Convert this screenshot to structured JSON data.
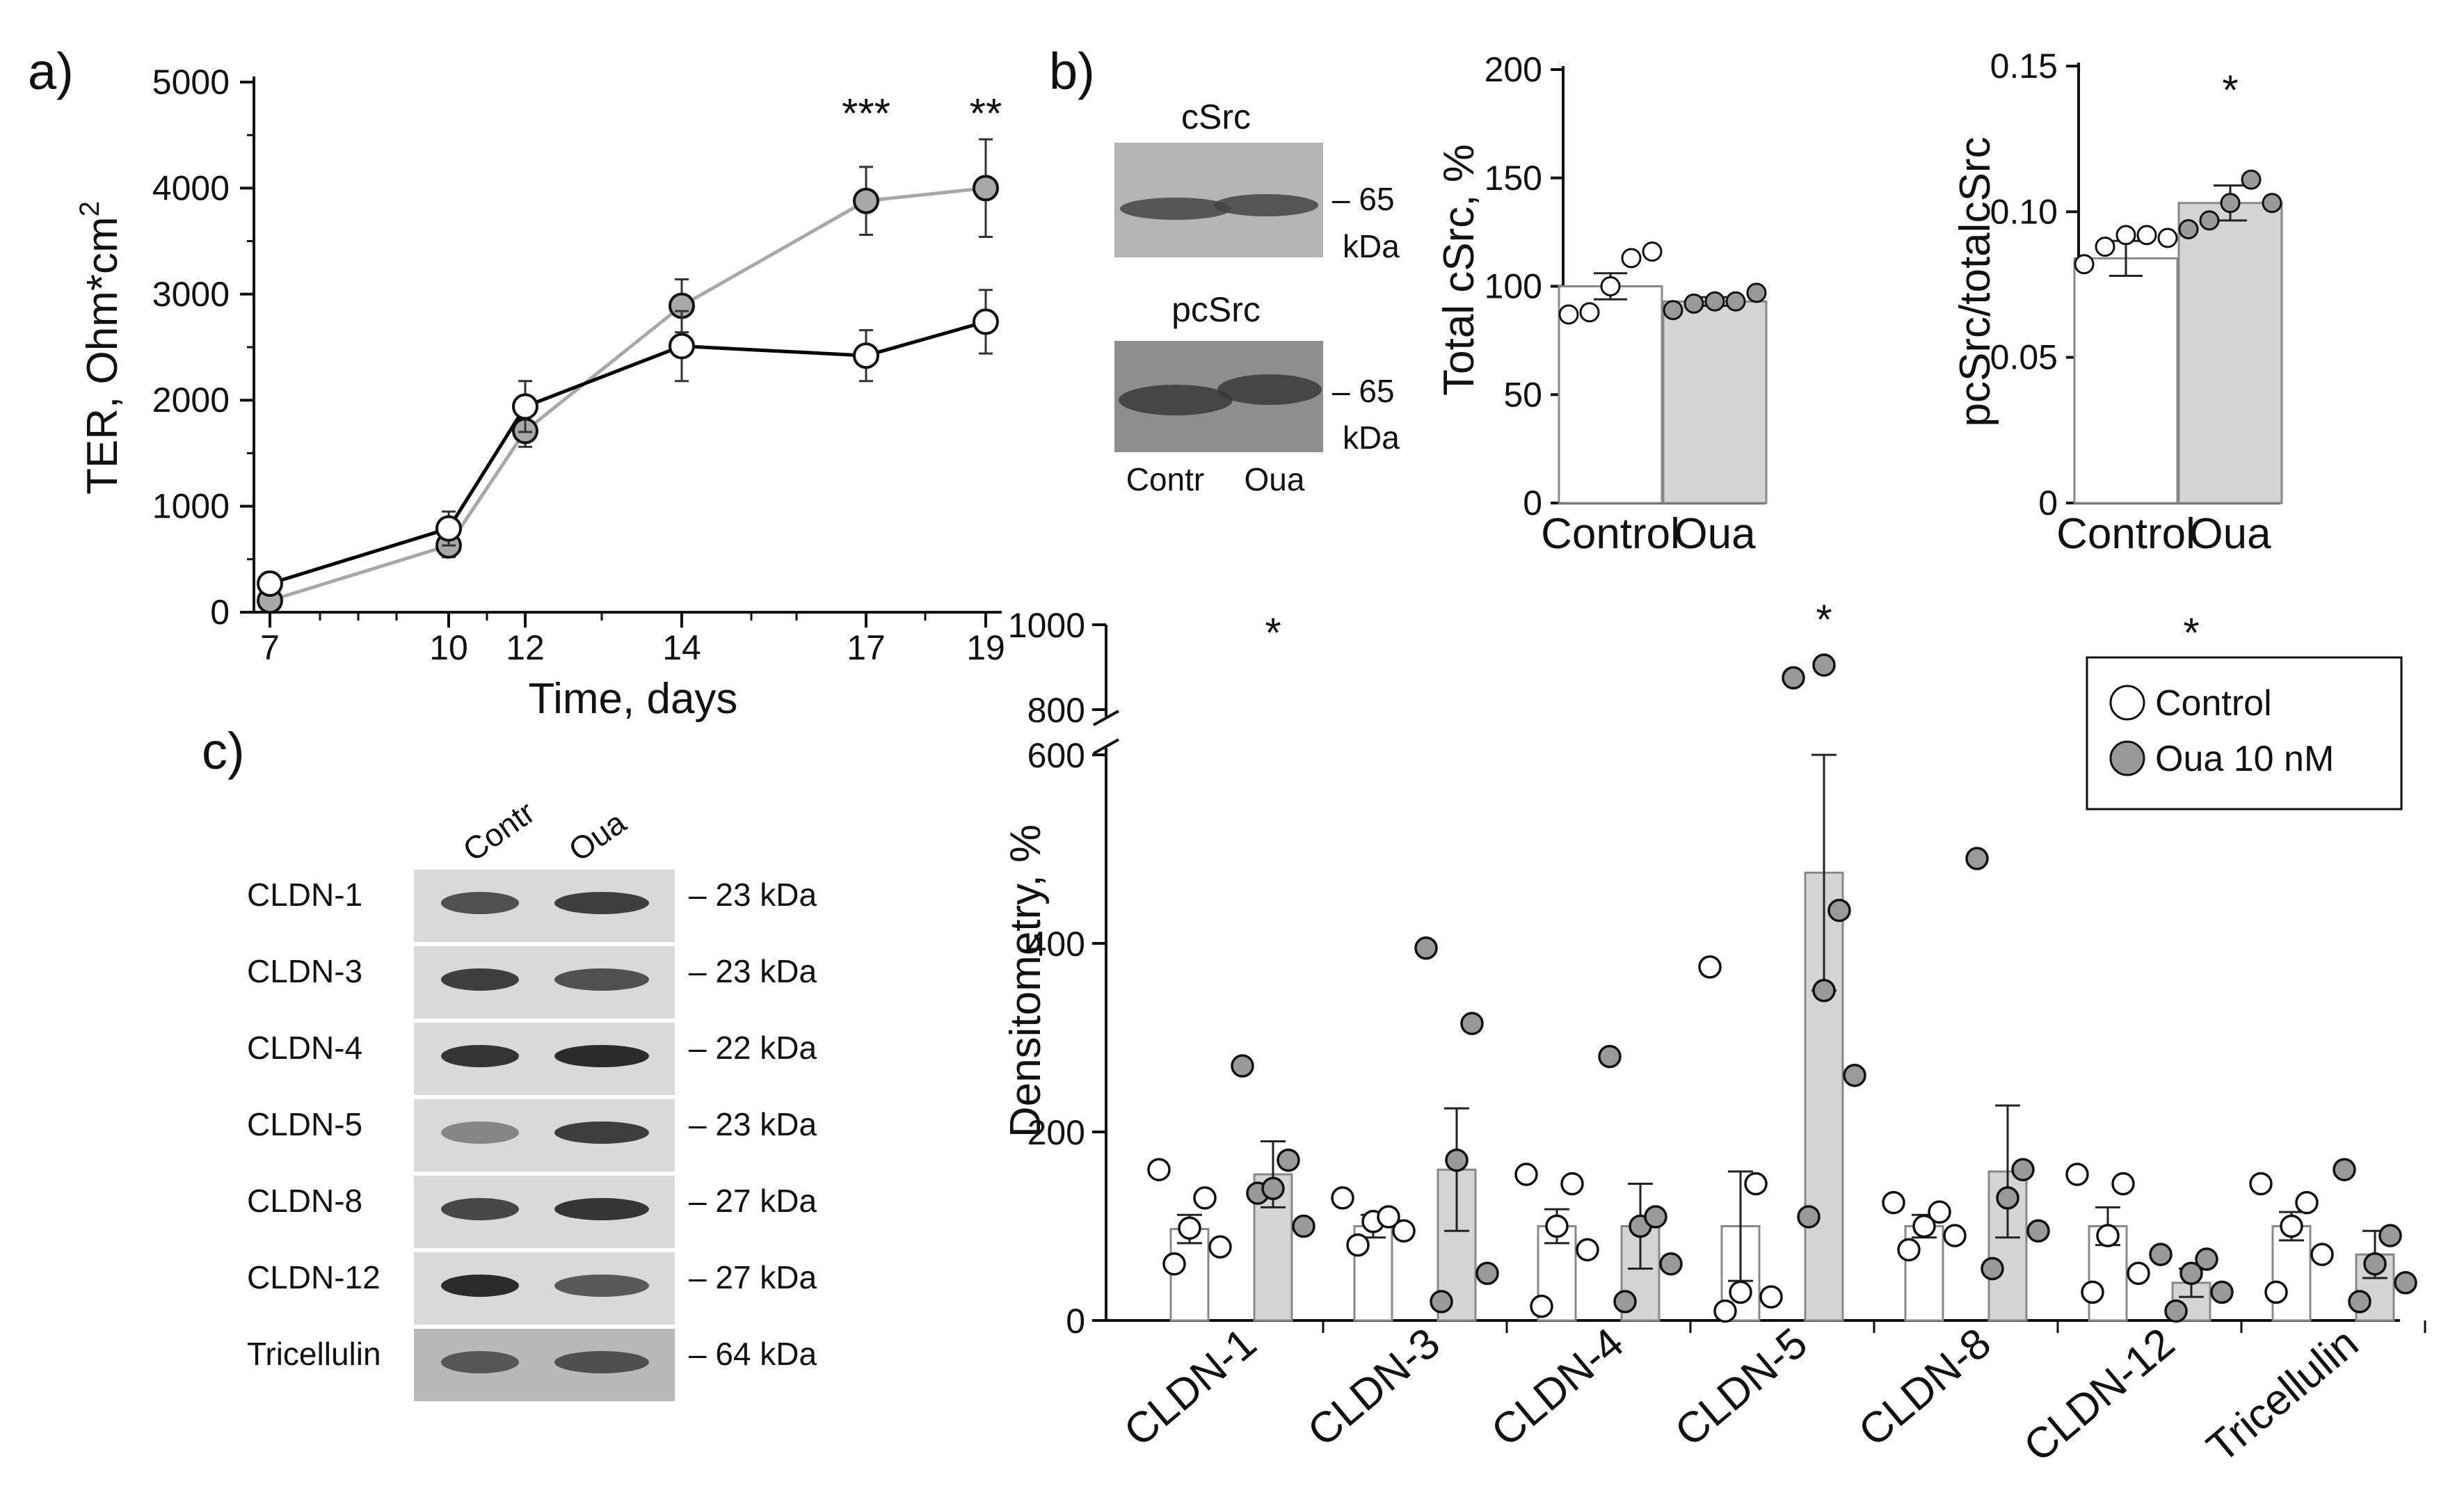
{
  "panels": {
    "a": "a)",
    "b": "b)",
    "c": "c)"
  },
  "chart_data": [
    {
      "id": "a",
      "type": "line",
      "xlabel": "Time, days",
      "ylabel": "TER, Ohm*cm",
      "ylabel_sup": "2",
      "ylim": [
        0,
        5000
      ],
      "yticks": [
        0,
        1000,
        2000,
        3000,
        4000,
        5000
      ],
      "xticks": [
        7,
        10,
        12,
        14,
        17,
        19
      ],
      "x": [
        7,
        10,
        12,
        14,
        17,
        19
      ],
      "series": [
        {
          "name": "Control",
          "color": "#000000",
          "fill": "#ffffff",
          "values": [
            270,
            790,
            1940,
            2510,
            2420,
            2740
          ],
          "err": [
            40,
            160,
            240,
            330,
            240,
            300
          ]
        },
        {
          "name": "Oua 10 nM",
          "color": "#a8a8a8",
          "fill": "#a8a8a8",
          "values": [
            110,
            630,
            1710,
            2890,
            3880,
            4000
          ],
          "err": [
            40,
            110,
            150,
            250,
            320,
            460
          ]
        }
      ],
      "annotations": [
        {
          "x": 17,
          "text": "***"
        },
        {
          "x": 19,
          "text": "**"
        }
      ]
    },
    {
      "id": "b-total",
      "type": "bar",
      "categories": [
        "Control",
        "Oua"
      ],
      "values": [
        100,
        93
      ],
      "err": [
        6,
        2
      ],
      "points": [
        [
          87,
          88,
          100,
          113,
          116
        ],
        [
          89,
          92,
          93,
          93,
          97
        ]
      ],
      "ylabel": "Total cSrc, %",
      "ylim": [
        0,
        200
      ],
      "yticks": [
        0,
        50,
        100,
        150,
        200
      ]
    },
    {
      "id": "b-ratio",
      "type": "bar",
      "categories": [
        "Control",
        "Oua"
      ],
      "values": [
        0.084,
        0.103
      ],
      "err": [
        0.006,
        0.006
      ],
      "points": [
        [
          0.082,
          0.088,
          0.092,
          0.092,
          0.091
        ],
        [
          0.094,
          0.097,
          0.103,
          0.111,
          0.103
        ]
      ],
      "ylabel": "pcSrc/totalcSrc",
      "ylim": [
        0,
        0.15
      ],
      "yticks": [
        "0",
        "0.05",
        "0.10",
        "0.15"
      ],
      "annotations": [
        {
          "category": "Oua",
          "text": "*"
        }
      ]
    },
    {
      "id": "c",
      "type": "bar",
      "categories": [
        "CLDN-1",
        "CLDN-3",
        "CLDN-4",
        "CLDN-5",
        "CLDN-8",
        "CLDN-12",
        "Tricellulin"
      ],
      "series": [
        {
          "name": "Control",
          "values": [
            97,
            100,
            100,
            100,
            100,
            100,
            100
          ],
          "err": [
            15,
            12,
            18,
            58,
            12,
            20,
            15
          ]
        },
        {
          "name": "Oua 10 nM",
          "values": [
            155,
            160,
            100,
            475,
            158,
            40,
            70
          ],
          "err": [
            35,
            65,
            45,
            125,
            70,
            15,
            25
          ]
        }
      ],
      "points": [
        [
          [
            60,
            78,
            98,
            130,
            160
          ],
          [
            135,
            100,
            140,
            170,
            270
          ]
        ],
        [
          [
            80,
            95,
            105,
            110,
            130
          ],
          [
            20,
            50,
            170,
            315,
            395
          ]
        ],
        [
          [
            15,
            75,
            100,
            145,
            155
          ],
          [
            20,
            60,
            100,
            110,
            280
          ]
        ],
        [
          [
            10,
            25,
            30,
            145,
            375
          ],
          [
            110,
            260,
            350,
            435,
            875,
            905
          ]
        ],
        [
          [
            75,
            90,
            100,
            115,
            125
          ],
          [
            55,
            95,
            130,
            160,
            490
          ]
        ],
        [
          [
            30,
            50,
            90,
            145,
            155
          ],
          [
            10,
            30,
            50,
            65,
            70
          ]
        ],
        [
          [
            30,
            70,
            100,
            125,
            145
          ],
          [
            20,
            40,
            60,
            90,
            160
          ]
        ]
      ],
      "ylabel": "Densitometry, %",
      "ylim": [
        0,
        1000
      ],
      "axis_break": [
        600,
        800
      ],
      "yticks": [
        0,
        200,
        400,
        600,
        800,
        1000
      ],
      "annotations": [
        {
          "category": "CLDN-1",
          "text": "*"
        },
        {
          "category": "CLDN-5",
          "text": "*"
        },
        {
          "category": "CLDN-12",
          "text": "*"
        }
      ],
      "legend": [
        "Control",
        "Oua 10 nM"
      ]
    }
  ],
  "blots_b": {
    "top_title": "cSrc",
    "bottom_title": "pcSrc",
    "marker": "– 65",
    "unit": "kDa",
    "lanes": [
      "Contr",
      "Oua"
    ]
  },
  "blots_c": {
    "lanes": [
      "Contr",
      "Oua"
    ],
    "rows": [
      {
        "label": "CLDN-1",
        "kda": "– 23 kDa"
      },
      {
        "label": "CLDN-3",
        "kda": "– 23 kDa"
      },
      {
        "label": "CLDN-4",
        "kda": "– 22 kDa"
      },
      {
        "label": "CLDN-5",
        "kda": "– 23 kDa"
      },
      {
        "label": "CLDN-8",
        "kda": "– 27 kDa"
      },
      {
        "label": "CLDN-12",
        "kda": "– 27 kDa"
      },
      {
        "label": "Tricellulin",
        "kda": "– 64 kDa"
      }
    ]
  },
  "colors": {
    "control_fill": "#ffffff",
    "oua_fill": "#999999",
    "bar_oua": "#d4d4d4",
    "line_oua": "#a8a8a8",
    "axis": "#111111"
  }
}
